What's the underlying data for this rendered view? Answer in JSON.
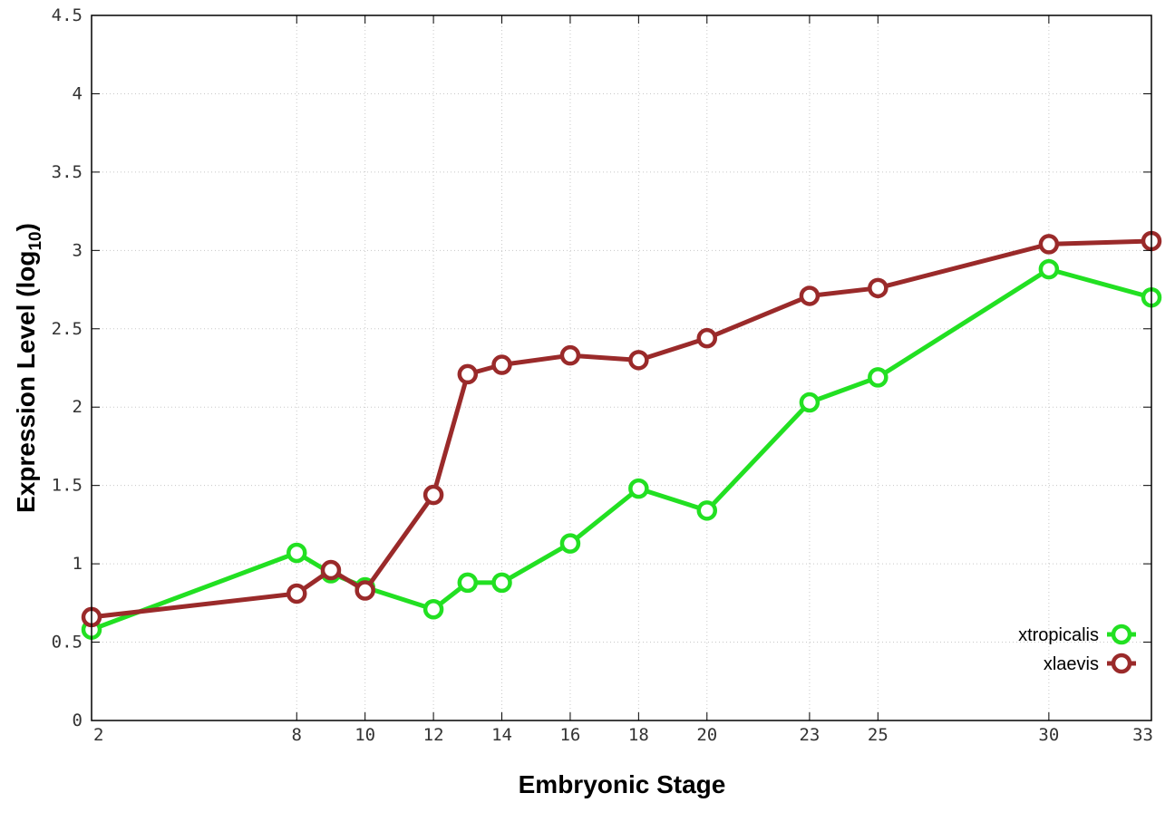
{
  "chart_data": {
    "type": "line",
    "xlabel": "Embryonic Stage",
    "ylabel": "Expression Level (log",
    "ylabel_sub": "10",
    "ylabel_end": ")",
    "xlim": [
      2,
      33
    ],
    "ylim": [
      0,
      4.5
    ],
    "xticks": [
      2,
      8,
      10,
      12,
      14,
      16,
      18,
      20,
      23,
      25,
      30,
      33
    ],
    "yticks": [
      0,
      0.5,
      1,
      1.5,
      2,
      2.5,
      3,
      3.5,
      4,
      4.5
    ],
    "yticklabels": [
      "0",
      "0.5",
      "1",
      "1.5",
      "2",
      "2.5",
      "3",
      "3.5",
      "4",
      "4.5"
    ],
    "grid": true,
    "legend_position": "bottom-right",
    "series": [
      {
        "name": "xtropicalis",
        "color": "#22e022",
        "x": [
          2,
          8,
          9,
          10,
          12,
          13,
          14,
          16,
          18,
          20,
          23,
          25,
          30,
          33
        ],
        "y": [
          0.58,
          1.07,
          0.94,
          0.85,
          0.71,
          0.88,
          0.88,
          1.13,
          1.48,
          1.34,
          2.03,
          2.19,
          2.88,
          2.7
        ]
      },
      {
        "name": "xlaevis",
        "color": "#9a2a2a",
        "x": [
          2,
          8,
          9,
          10,
          12,
          13,
          14,
          16,
          18,
          20,
          23,
          25,
          30,
          33
        ],
        "y": [
          0.66,
          0.81,
          0.96,
          0.83,
          1.44,
          2.21,
          2.27,
          2.33,
          2.3,
          2.44,
          2.71,
          2.76,
          3.04,
          3.06
        ]
      }
    ]
  }
}
